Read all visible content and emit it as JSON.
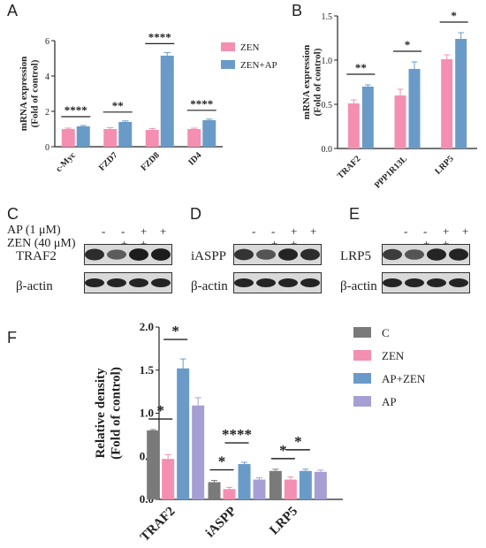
{
  "chart_data": [
    {
      "panel": "A",
      "type": "bar",
      "ylabel": "mRNA expression\n(Fold of control)",
      "ylim": [
        0,
        6
      ],
      "yticks": [
        0,
        2,
        4,
        6
      ],
      "categories": [
        "c-Myc",
        "FZD7",
        "FZD8",
        "ID4"
      ],
      "series": [
        {
          "name": "ZEN",
          "values": [
            1.0,
            1.0,
            0.95,
            1.0
          ],
          "errors": [
            0.05,
            0.08,
            0.08,
            0.05
          ]
        },
        {
          "name": "ZEN+AP",
          "values": [
            1.15,
            1.4,
            5.15,
            1.5
          ],
          "errors": [
            0.05,
            0.06,
            0.18,
            0.06
          ]
        }
      ],
      "significance": [
        "****",
        "**",
        "****",
        "****"
      ],
      "legend": "top-right",
      "colors": [
        "#f48fb1",
        "#6a9bc8"
      ]
    },
    {
      "panel": "B",
      "type": "bar",
      "ylabel": "mRNA expression\n(Fold of control)",
      "ylim": [
        0,
        1.5
      ],
      "yticks": [
        0,
        0.5,
        1.0,
        1.5
      ],
      "categories": [
        "TRAF2",
        "PPP1R13L",
        "LRP5"
      ],
      "series": [
        {
          "name": "ZEN",
          "values": [
            0.51,
            0.6,
            1.01
          ],
          "errors": [
            0.04,
            0.07,
            0.05
          ]
        },
        {
          "name": "ZEN+AP",
          "values": [
            0.7,
            0.9,
            1.24
          ],
          "errors": [
            0.02,
            0.08,
            0.07
          ]
        }
      ],
      "significance": [
        "**",
        "*",
        "*"
      ],
      "colors": [
        "#f48fb1",
        "#6a9bc8"
      ]
    },
    {
      "panel": "F",
      "type": "bar",
      "ylabel": "Relative density\n(Fold of control)",
      "ylim": [
        0,
        2.0
      ],
      "yticks": [
        0.0,
        0.5,
        1.0,
        1.5,
        2.0
      ],
      "categories": [
        "TRAF2",
        "iASPP",
        "LRP5"
      ],
      "series": [
        {
          "name": "C",
          "values": [
            0.8,
            0.2,
            0.33
          ],
          "errors": [
            0.01,
            0.02,
            0.02
          ]
        },
        {
          "name": "ZEN",
          "values": [
            0.47,
            0.12,
            0.23
          ],
          "errors": [
            0.05,
            0.02,
            0.03
          ]
        },
        {
          "name": "AP+ZEN",
          "values": [
            1.52,
            0.41,
            0.33
          ],
          "errors": [
            0.11,
            0.02,
            0.02
          ]
        },
        {
          "name": "AP",
          "values": [
            1.09,
            0.23,
            0.32
          ],
          "errors": [
            0.09,
            0.02,
            0.02
          ]
        }
      ],
      "significance": [
        {
          "category": "TRAF2",
          "pair": [
            0,
            1
          ],
          "label": "*"
        },
        {
          "category": "TRAF2",
          "pair": [
            1,
            2
          ],
          "label": "*"
        },
        {
          "category": "iASPP",
          "pair": [
            0,
            1
          ],
          "label": "*"
        },
        {
          "category": "iASPP",
          "pair": [
            1,
            2
          ],
          "label": "****"
        },
        {
          "category": "LRP5",
          "pair": [
            0,
            1
          ],
          "label": "*"
        },
        {
          "category": "LRP5",
          "pair": [
            1,
            2
          ],
          "label": "*"
        }
      ],
      "legend": "top-right",
      "colors": [
        "#7a7a7a",
        "#f48fb1",
        "#6a9bc8",
        "#a59fd4"
      ]
    }
  ],
  "blots": {
    "letters": [
      "C",
      "D",
      "E"
    ],
    "conditions": {
      "ap_label": "AP (1 μM)",
      "zen_label": "ZEN (40 μM)",
      "ap_signs": [
        "-",
        "-",
        "+",
        "+"
      ],
      "zen_signs": [
        "-",
        "+",
        "+",
        "-"
      ]
    },
    "panels": [
      {
        "letter": "C",
        "protein": "TRAF2",
        "loading": "β-actin",
        "band_strengths": [
          0.85,
          0.55,
          0.95,
          0.95
        ]
      },
      {
        "letter": "D",
        "protein": "iASPP",
        "loading": "β-actin",
        "band_strengths": [
          0.8,
          0.6,
          0.9,
          0.85
        ]
      },
      {
        "letter": "E",
        "protein": "LRP5",
        "loading": "β-actin",
        "band_strengths": [
          0.75,
          0.6,
          0.9,
          0.9
        ]
      }
    ]
  }
}
